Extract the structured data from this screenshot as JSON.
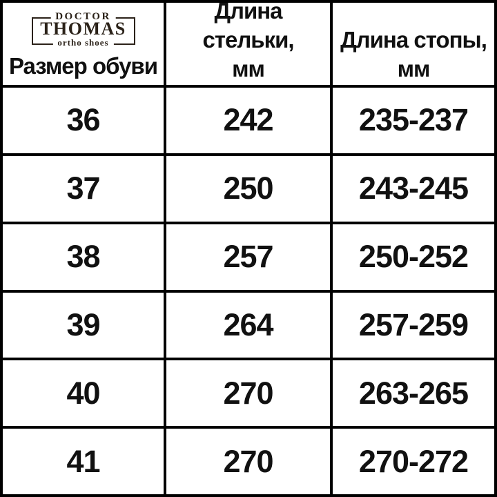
{
  "brand": {
    "top_word": "DOCTOR",
    "name": "THOMAS",
    "tagline": "ortho shoes"
  },
  "chart_data": {
    "type": "table",
    "columns": [
      "Размер обуви",
      "Длина стельки,\nмм",
      "Длина стопы,\nмм"
    ],
    "rows": [
      [
        "36",
        "242",
        "235-237"
      ],
      [
        "37",
        "250",
        "243-245"
      ],
      [
        "38",
        "257",
        "250-252"
      ],
      [
        "39",
        "264",
        "257-259"
      ],
      [
        "40",
        "270",
        "263-265"
      ],
      [
        "41",
        "270",
        "270-272"
      ]
    ]
  },
  "colors": {
    "border": "#000000",
    "logo_brown": "#2b2219",
    "text": "#111111",
    "background": "#ffffff"
  }
}
